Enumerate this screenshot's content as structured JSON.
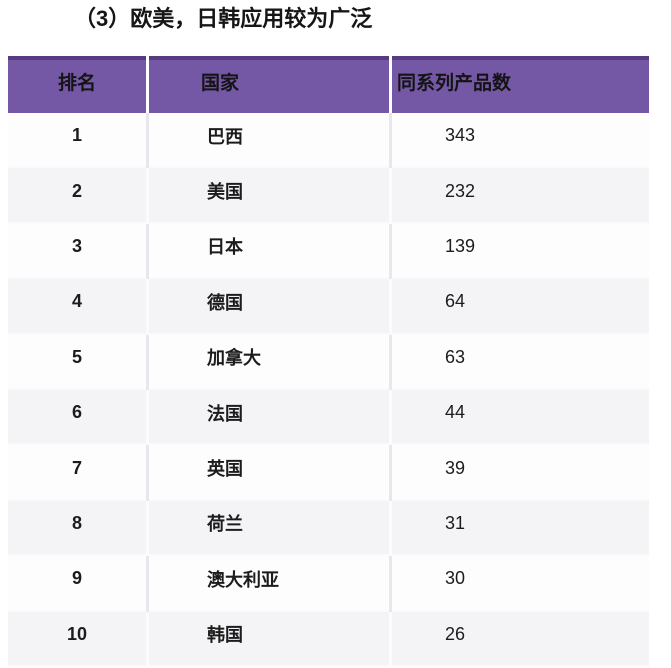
{
  "title": "（3）欧美，日韩应用较为广泛",
  "table": {
    "columns": [
      "排名",
      "国家",
      "同系列产品数"
    ],
    "rows": [
      {
        "rank": "1",
        "country": "巴西",
        "count": "343"
      },
      {
        "rank": "2",
        "country": "美国",
        "count": "232"
      },
      {
        "rank": "3",
        "country": "日本",
        "count": "139"
      },
      {
        "rank": "4",
        "country": "德国",
        "count": "64"
      },
      {
        "rank": "5",
        "country": "加拿大",
        "count": "63"
      },
      {
        "rank": "6",
        "country": "法国",
        "count": "44"
      },
      {
        "rank": "7",
        "country": "英国",
        "count": "39"
      },
      {
        "rank": "8",
        "country": "荷兰",
        "count": "31"
      },
      {
        "rank": "9",
        "country": "澳大利亚",
        "count": "30"
      },
      {
        "rank": "10",
        "country": "韩国",
        "count": "26"
      }
    ]
  },
  "colors": {
    "header_bg": "#7457a5",
    "header_top_border": "#573a7f",
    "header_text": "#141414",
    "row_white_bg": "#fdfdfe",
    "row_gray_bg": "#f4f3f6",
    "body_text": "#1c1c1c",
    "page_bg": "#ffffff"
  },
  "chart_data": {
    "type": "table",
    "title": "（3）欧美，日韩应用较为广泛",
    "columns": [
      "排名",
      "国家",
      "同系列产品数"
    ],
    "rows": [
      [
        1,
        "巴西",
        343
      ],
      [
        2,
        "美国",
        232
      ],
      [
        3,
        "日本",
        139
      ],
      [
        4,
        "德国",
        64
      ],
      [
        5,
        "加拿大",
        63
      ],
      [
        6,
        "法国",
        44
      ],
      [
        7,
        "英国",
        39
      ],
      [
        8,
        "荷兰",
        31
      ],
      [
        9,
        "澳大利亚",
        30
      ],
      [
        10,
        "韩国",
        26
      ]
    ]
  }
}
